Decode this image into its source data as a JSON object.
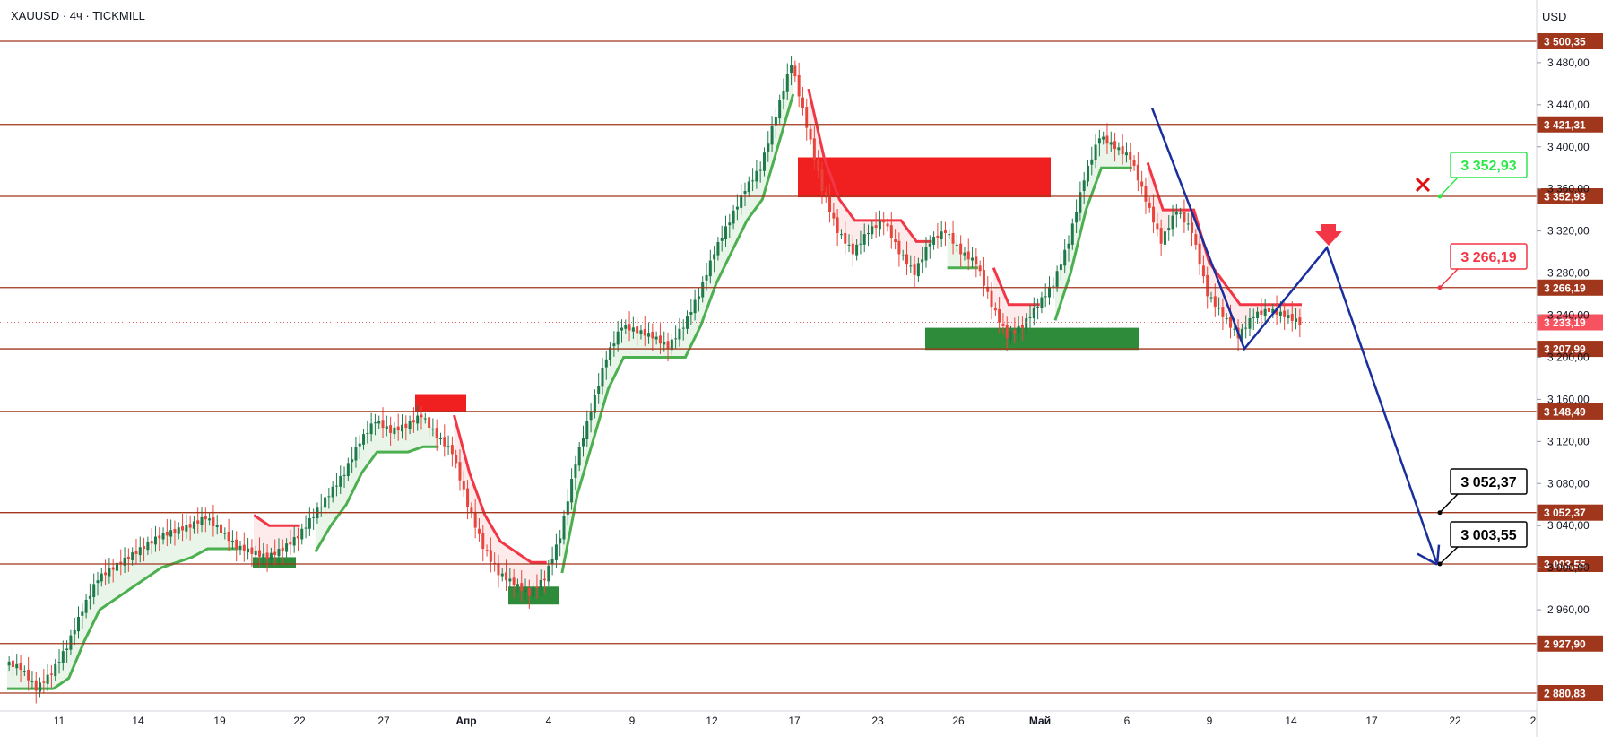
{
  "header": {
    "title": "XAUUSD · 4ч · TICKMILL",
    "currency": "USD"
  },
  "colors": {
    "level_line": "#a0361c",
    "bull_candle": "#1e7a4a",
    "bear_candle": "#e8453c",
    "trail_up": "#4caf50",
    "trail_down": "#f23645",
    "trail_up_fill": "#e6f4e6",
    "trail_down_fill": "#fde8e8",
    "supply_zone": "#f02020",
    "demand_zone": "#2e8b3a",
    "projection": "#1a2f9e",
    "current_price": "#e06b6b",
    "target_green": "#2ee84a",
    "target_red": "#f23645"
  },
  "chart_data": {
    "type": "candlestick",
    "symbol": "XAUUSD",
    "timeframe": "4ч",
    "broker": "TICKMILL",
    "ylim": [
      2870,
      3510
    ],
    "y_ticks": [
      "2 960,00",
      "3 000,00",
      "3 040,00",
      "3 080,00",
      "3 120,00",
      "3 160,00",
      "3 200,00",
      "3 240,00",
      "3 280,00",
      "3 320,00",
      "3 360,00",
      "3 400,00",
      "3 440,00",
      "3 480,00"
    ],
    "x_ticks": [
      "11",
      "14",
      "19",
      "22",
      "27",
      "Апр",
      "4",
      "9",
      "12",
      "17",
      "23",
      "26",
      "Май",
      "6",
      "9",
      "14",
      "17",
      "22",
      "2"
    ],
    "current_price": 3233.19,
    "current_price_label": "3 233,19",
    "levels": [
      {
        "value": 3500.35,
        "label": "3 500,35"
      },
      {
        "value": 3421.31,
        "label": "3 421,31"
      },
      {
        "value": 3352.93,
        "label": "3 352,93"
      },
      {
        "value": 3266.19,
        "label": "3 266,19"
      },
      {
        "value": 3207.99,
        "label": "3 207,99"
      },
      {
        "value": 3148.49,
        "label": "3 148,49"
      },
      {
        "value": 3052.37,
        "label": "3 052,37"
      },
      {
        "value": 3003.55,
        "label": "3 003,55"
      },
      {
        "value": 2927.9,
        "label": "2 927,90"
      },
      {
        "value": 2880.83,
        "label": "2 880,83"
      }
    ],
    "callouts": [
      {
        "label": "3 352,93",
        "style": "green"
      },
      {
        "label": "3 266,19",
        "style": "red"
      },
      {
        "label": "3 052,37",
        "style": "black"
      },
      {
        "label": "3 003,55",
        "style": "black"
      }
    ],
    "zones": [
      {
        "kind": "supply",
        "from": 3352,
        "to": 3390
      },
      {
        "kind": "demand",
        "from": 3207,
        "to": 3228
      },
      {
        "kind": "supply",
        "from": 3148,
        "to": 3165
      },
      {
        "kind": "demand",
        "from": 2965,
        "to": 2982
      },
      {
        "kind": "demand",
        "from": 3000,
        "to": 3010
      }
    ],
    "projection": [
      3437,
      3208,
      3304,
      3003
    ],
    "close_path": [
      2910,
      2905,
      2885,
      2900,
      2925,
      2960,
      2990,
      3000,
      3010,
      3020,
      3030,
      3035,
      3040,
      3048,
      3035,
      3020,
      3015,
      3010,
      3018,
      3030,
      3050,
      3070,
      3090,
      3120,
      3140,
      3130,
      3135,
      3145,
      3125,
      3110,
      3060,
      3020,
      2995,
      2985,
      2975,
      2990,
      3030,
      3100,
      3150,
      3200,
      3230,
      3225,
      3220,
      3210,
      3230,
      3260,
      3300,
      3330,
      3360,
      3380,
      3430,
      3480,
      3420,
      3360,
      3320,
      3300,
      3320,
      3330,
      3300,
      3280,
      3310,
      3320,
      3300,
      3290,
      3250,
      3220,
      3230,
      3250,
      3270,
      3310,
      3370,
      3410,
      3400,
      3390,
      3350,
      3310,
      3340,
      3320,
      3260,
      3240,
      3220,
      3240,
      3245,
      3240,
      3233
    ]
  }
}
